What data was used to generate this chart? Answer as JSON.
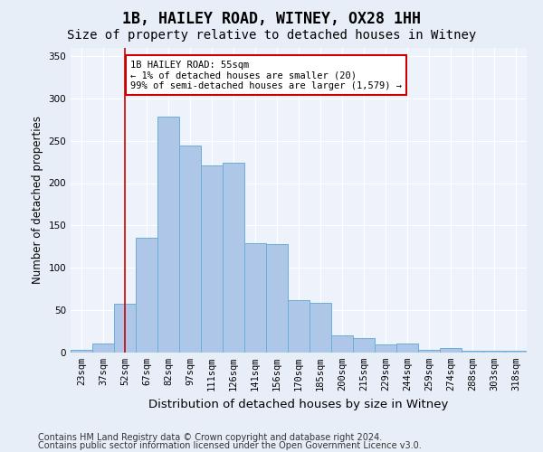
{
  "title": "1B, HAILEY ROAD, WITNEY, OX28 1HH",
  "subtitle": "Size of property relative to detached houses in Witney",
  "xlabel": "Distribution of detached houses by size in Witney",
  "ylabel": "Number of detached properties",
  "categories": [
    "23sqm",
    "37sqm",
    "52sqm",
    "67sqm",
    "82sqm",
    "97sqm",
    "111sqm",
    "126sqm",
    "141sqm",
    "156sqm",
    "170sqm",
    "185sqm",
    "200sqm",
    "215sqm",
    "229sqm",
    "244sqm",
    "259sqm",
    "274sqm",
    "288sqm",
    "303sqm",
    "318sqm"
  ],
  "values": [
    3,
    11,
    58,
    135,
    278,
    244,
    221,
    224,
    129,
    128,
    62,
    59,
    20,
    17,
    10,
    11,
    3,
    5,
    2,
    2,
    2
  ],
  "bar_color": "#aec6e8",
  "bar_edge_color": "#6aaed6",
  "vline_x": 2,
  "vline_color": "#cc0000",
  "annotation_text": "1B HAILEY ROAD: 55sqm\n← 1% of detached houses are smaller (20)\n99% of semi-detached houses are larger (1,579) →",
  "annotation_box_color": "#ffffff",
  "annotation_box_edge": "#cc0000",
  "ylim": [
    0,
    360
  ],
  "yticks": [
    0,
    50,
    100,
    150,
    200,
    250,
    300,
    350
  ],
  "background_color": "#eef3fb",
  "fig_background_color": "#e8eef8",
  "grid_color": "#ffffff",
  "footer_line1": "Contains HM Land Registry data © Crown copyright and database right 2024.",
  "footer_line2": "Contains public sector information licensed under the Open Government Licence v3.0.",
  "title_fontsize": 12,
  "subtitle_fontsize": 10,
  "xlabel_fontsize": 9.5,
  "ylabel_fontsize": 8.5,
  "tick_fontsize": 7.5,
  "annotation_fontsize": 7.5,
  "footer_fontsize": 7
}
